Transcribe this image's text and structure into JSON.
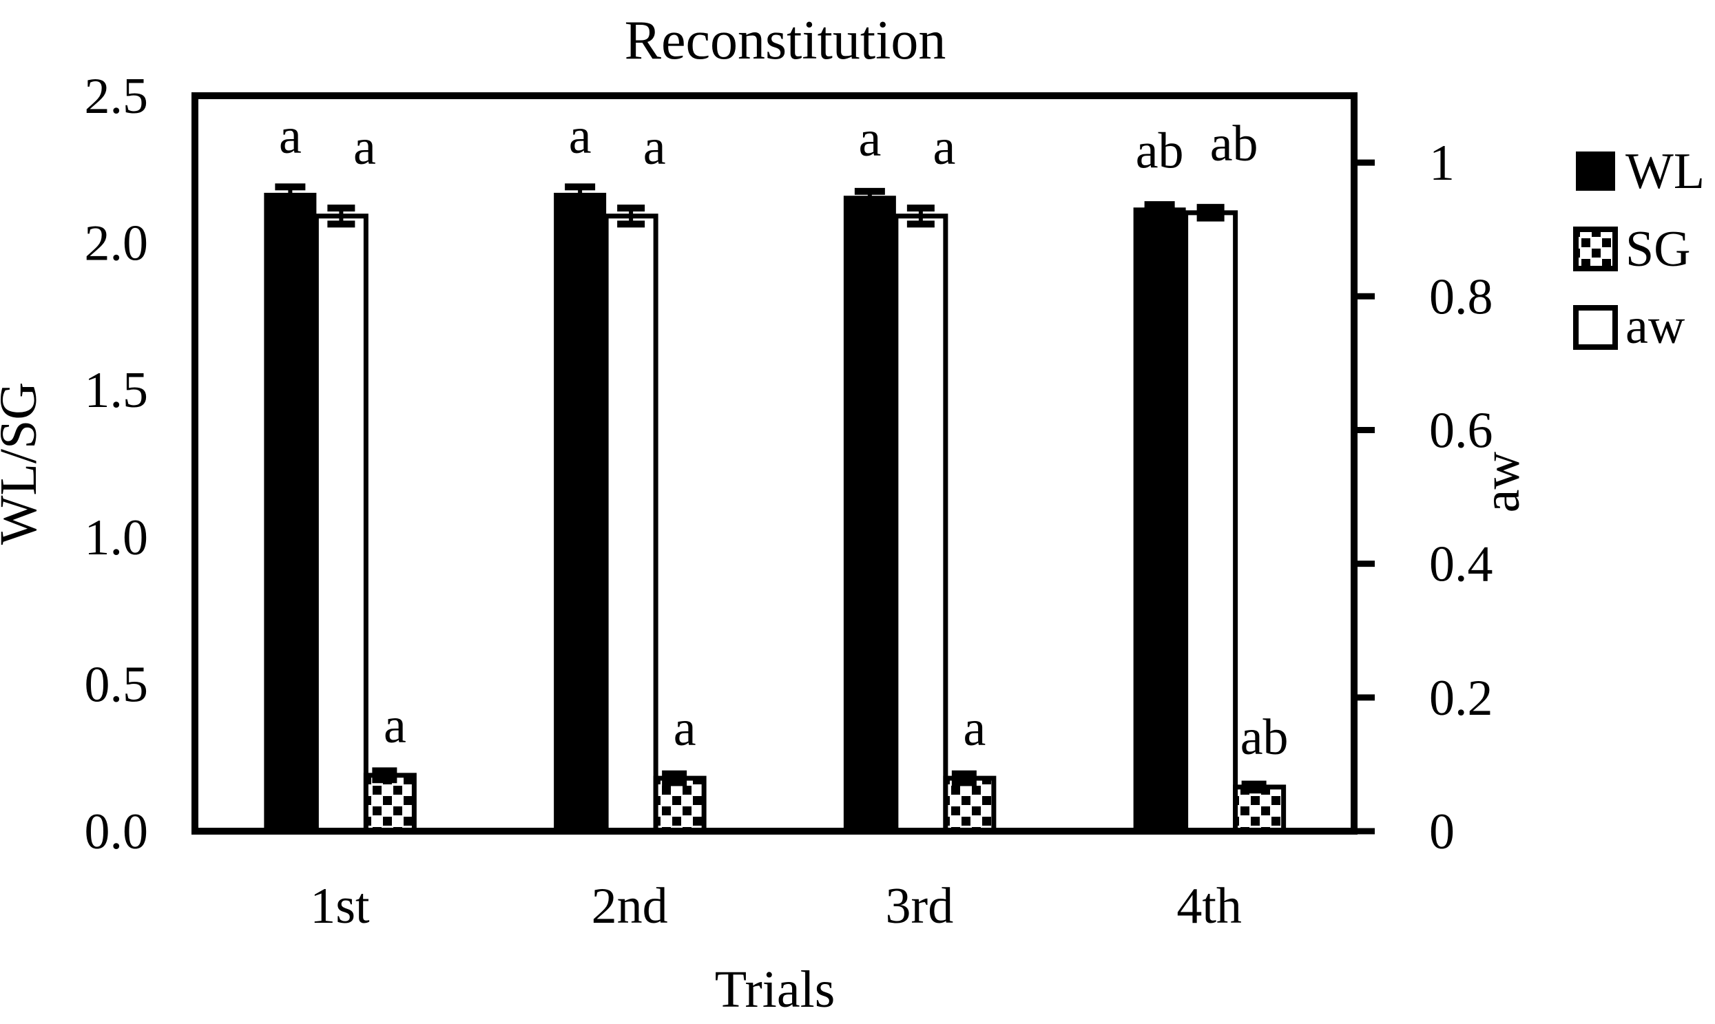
{
  "chart_data": {
    "type": "bar",
    "title": "Reconstitution",
    "xlabel": "Trials",
    "ylabel_left": "WL/SG",
    "ylabel_right": "aw",
    "categories": [
      "1st",
      "2nd",
      "3rd",
      "4th"
    ],
    "ylim_left": [
      0,
      2.5
    ],
    "ylim_right": [
      0,
      1.1
    ],
    "left_tick_values": [
      0,
      0.5,
      1.0,
      1.5,
      2.0,
      2.5
    ],
    "left_tick_labels": [
      "0.0",
      "0.5",
      "1.0",
      "1.5",
      "2.0",
      "2.5"
    ],
    "right_tick_values": [
      0,
      0.2,
      0.4,
      0.6,
      0.8,
      1
    ],
    "right_tick_labels": [
      "0",
      "0.2",
      "0.4",
      "0.6",
      "0.8",
      "1"
    ],
    "grid": false,
    "legend_position": "right",
    "series": [
      {
        "name": "WL",
        "axis": "left",
        "fill": "solid-black",
        "values": [
          2.17,
          2.17,
          2.16,
          2.12
        ],
        "errors": [
          0.02,
          0.02,
          0.015,
          0.01
        ],
        "sig_letters": [
          "a",
          "a",
          "a",
          "ab"
        ]
      },
      {
        "name": "SG",
        "axis": "left",
        "fill": "checkered",
        "values": [
          0.19,
          0.18,
          0.18,
          0.15
        ],
        "errors": [
          0.015,
          0.015,
          0.015,
          0.01
        ],
        "sig_letters": [
          "a",
          "a",
          "a",
          "ab"
        ]
      },
      {
        "name": "aw",
        "axis": "right",
        "fill": "white-outline",
        "values": [
          0.92,
          0.92,
          0.92,
          0.925
        ],
        "errors": [
          0.012,
          0.012,
          0.012,
          0.008
        ],
        "sig_letters": [
          "a",
          "a",
          "a",
          "ab"
        ]
      }
    ],
    "legend": {
      "items": [
        {
          "label": "WL",
          "swatch": "solid-black"
        },
        {
          "label": "SG",
          "swatch": "checkered"
        },
        {
          "label": "aw",
          "swatch": "white-outline"
        }
      ]
    },
    "colors": {
      "foreground": "#000000",
      "background": "#ffffff"
    }
  }
}
